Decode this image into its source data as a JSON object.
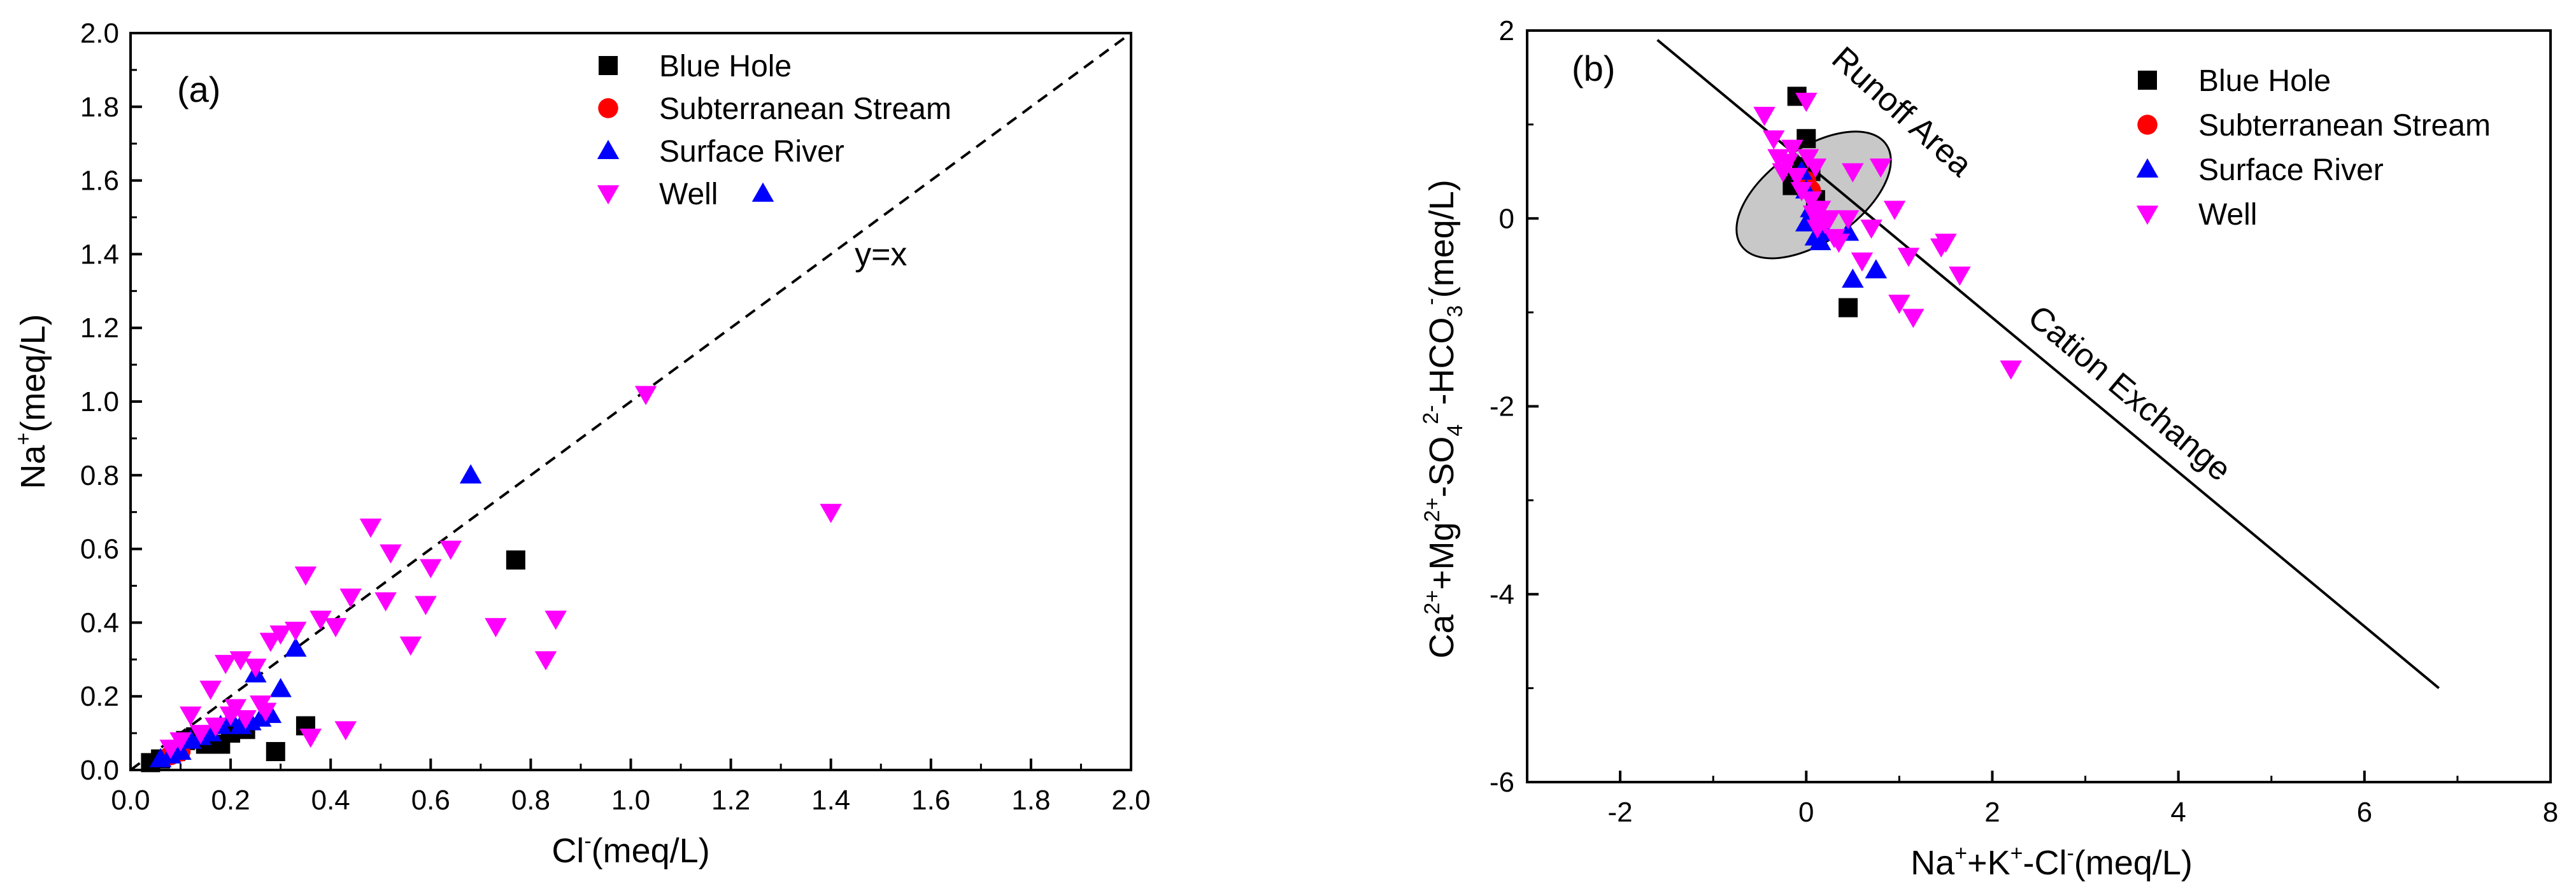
{
  "chart_data": [
    {
      "type": "scatter",
      "panel_label": "(a)",
      "xlabel": {
        "base": "Cl",
        "sup": "-",
        "unit": "(meq/L)"
      },
      "ylabel": {
        "base": "Na",
        "sup": "+",
        "unit": "(meq/L)"
      },
      "xlim": [
        0,
        2.0
      ],
      "ylim": [
        0,
        2.0
      ],
      "xticks": [
        0.0,
        0.2,
        0.4,
        0.6,
        0.8,
        1.0,
        1.2,
        1.4,
        1.6,
        1.8,
        2.0
      ],
      "yticks": [
        0.0,
        0.2,
        0.4,
        0.6,
        0.8,
        1.0,
        1.2,
        1.4,
        1.6,
        1.8,
        2.0
      ],
      "xtick_labels": [
        "0.0",
        "0.2",
        "0.4",
        "0.6",
        "0.8",
        "1.0",
        "1.2",
        "1.4",
        "1.6",
        "1.8",
        "2.0"
      ],
      "ytick_labels": [
        "0.0",
        "0.2",
        "0.4",
        "0.6",
        "0.8",
        "1.0",
        "1.2",
        "1.4",
        "1.6",
        "1.8",
        "2.0"
      ],
      "reference_line": {
        "label": "y=x",
        "points": [
          [
            0,
            0
          ],
          [
            2,
            2
          ]
        ],
        "style": "dashed"
      },
      "legend_position": "top-center",
      "series": [
        {
          "name": "Blue Hole",
          "marker": "square",
          "color": "#000000",
          "points": [
            [
              0.04,
              0.02
            ],
            [
              0.06,
              0.03
            ],
            [
              0.09,
              0.05
            ],
            [
              0.11,
              0.08
            ],
            [
              0.13,
              0.09
            ],
            [
              0.15,
              0.07
            ],
            [
              0.18,
              0.07
            ],
            [
              0.2,
              0.1
            ],
            [
              0.23,
              0.11
            ],
            [
              0.29,
              0.05
            ],
            [
              0.35,
              0.12
            ],
            [
              0.77,
              0.57
            ]
          ]
        },
        {
          "name": "Subterranean Stream",
          "marker": "circle",
          "color": "#ff0000",
          "points": [
            [
              0.08,
              0.04
            ],
            [
              0.1,
              0.05
            ]
          ]
        },
        {
          "name": "Surface River",
          "marker": "triangle-up",
          "color": "#0000ff",
          "points": [
            [
              0.06,
              0.03
            ],
            [
              0.08,
              0.04
            ],
            [
              0.1,
              0.05
            ],
            [
              0.12,
              0.08
            ],
            [
              0.14,
              0.09
            ],
            [
              0.16,
              0.1
            ],
            [
              0.18,
              0.12
            ],
            [
              0.2,
              0.14
            ],
            [
              0.22,
              0.12
            ],
            [
              0.24,
              0.13
            ],
            [
              0.25,
              0.26
            ],
            [
              0.26,
              0.14
            ],
            [
              0.28,
              0.15
            ],
            [
              0.3,
              0.22
            ],
            [
              0.33,
              0.33
            ],
            [
              0.68,
              0.8
            ]
          ]
        },
        {
          "name": "Well",
          "marker": "triangle-down",
          "color": "#ff00ff",
          "points": [
            [
              0.08,
              0.06
            ],
            [
              0.1,
              0.08
            ],
            [
              0.12,
              0.15
            ],
            [
              0.14,
              0.1
            ],
            [
              0.16,
              0.22
            ],
            [
              0.17,
              0.12
            ],
            [
              0.19,
              0.29
            ],
            [
              0.2,
              0.15
            ],
            [
              0.21,
              0.17
            ],
            [
              0.22,
              0.3
            ],
            [
              0.23,
              0.14
            ],
            [
              0.25,
              0.28
            ],
            [
              0.26,
              0.18
            ],
            [
              0.27,
              0.16
            ],
            [
              0.28,
              0.35
            ],
            [
              0.3,
              0.37
            ],
            [
              0.33,
              0.38
            ],
            [
              0.35,
              0.53
            ],
            [
              0.36,
              0.09
            ],
            [
              0.38,
              0.41
            ],
            [
              0.41,
              0.39
            ],
            [
              0.43,
              0.11
            ],
            [
              0.44,
              0.47
            ],
            [
              0.48,
              0.66
            ],
            [
              0.51,
              0.46
            ],
            [
              0.52,
              0.59
            ],
            [
              0.56,
              0.34
            ],
            [
              0.59,
              0.45
            ],
            [
              0.6,
              0.55
            ],
            [
              0.64,
              0.6
            ],
            [
              0.73,
              0.39
            ],
            [
              0.83,
              0.3
            ],
            [
              0.85,
              0.41
            ],
            [
              1.03,
              1.02
            ],
            [
              1.4,
              0.7
            ]
          ]
        }
      ]
    },
    {
      "type": "scatter",
      "panel_label": "(b)",
      "xlabel": {
        "text": "Na+ + K+ − Cl− (meq/L)"
      },
      "ylabel": {
        "text": "Ca2+ + Mg2+ − SO42− − HCO3− (meq/L)"
      },
      "xlim": [
        -3,
        8
      ],
      "ylim": [
        -6,
        2
      ],
      "xticks": [
        -2,
        0,
        2,
        4,
        6,
        8
      ],
      "yticks": [
        -6,
        -4,
        -2,
        0,
        2
      ],
      "xtick_labels": [
        "-2",
        "0",
        "2",
        "4",
        "6",
        "8"
      ],
      "ytick_labels": [
        "-6",
        "-4",
        "-2",
        "0",
        "2"
      ],
      "reference_line": {
        "label": "Cation Exchange",
        "points": [
          [
            -1.6,
            1.9
          ],
          [
            6.8,
            -5.0
          ]
        ],
        "style": "solid"
      },
      "region": {
        "label": "Runoff Area",
        "shape": "ellipse",
        "center": [
          0.08,
          0.25
        ],
        "semi_axes": [
          0.95,
          0.5
        ],
        "angle_deg": -35,
        "fill": "#c8c8c8"
      },
      "legend_position": "top-right",
      "series": [
        {
          "name": "Blue Hole",
          "marker": "square",
          "color": "#000000",
          "points": [
            [
              -0.1,
              1.3
            ],
            [
              0.0,
              0.85
            ],
            [
              -0.05,
              0.55
            ],
            [
              0.05,
              0.5
            ],
            [
              -0.1,
              0.4
            ],
            [
              -0.15,
              0.35
            ],
            [
              0.1,
              0.2
            ],
            [
              0.45,
              -0.95
            ]
          ]
        },
        {
          "name": "Subterranean Stream",
          "marker": "circle",
          "color": "#ff0000",
          "points": [
            [
              0.0,
              0.4
            ],
            [
              0.05,
              0.3
            ]
          ]
        },
        {
          "name": "Surface River",
          "marker": "triangle-up",
          "color": "#0000ff",
          "points": [
            [
              -0.05,
              0.5
            ],
            [
              0.0,
              0.3
            ],
            [
              0.05,
              0.1
            ],
            [
              0.0,
              -0.05
            ],
            [
              0.1,
              -0.2
            ],
            [
              0.15,
              -0.25
            ],
            [
              0.2,
              -0.15
            ],
            [
              0.45,
              -0.15
            ],
            [
              0.5,
              -0.65
            ],
            [
              0.75,
              -0.55
            ]
          ]
        },
        {
          "name": "Well",
          "marker": "triangle-down",
          "color": "#ff00ff",
          "points": [
            [
              -0.45,
              1.1
            ],
            [
              -0.35,
              0.85
            ],
            [
              -0.3,
              0.65
            ],
            [
              -0.25,
              0.5
            ],
            [
              -0.2,
              0.6
            ],
            [
              -0.15,
              0.75
            ],
            [
              -0.1,
              0.45
            ],
            [
              -0.05,
              0.3
            ],
            [
              0.0,
              1.25
            ],
            [
              0.02,
              0.65
            ],
            [
              0.05,
              0.2
            ],
            [
              0.08,
              0.05
            ],
            [
              0.1,
              0.55
            ],
            [
              0.12,
              -0.1
            ],
            [
              0.15,
              0.1
            ],
            [
              0.2,
              -0.05
            ],
            [
              0.25,
              0.0
            ],
            [
              0.3,
              -0.2
            ],
            [
              0.35,
              -0.25
            ],
            [
              0.45,
              0.0
            ],
            [
              0.5,
              0.5
            ],
            [
              0.6,
              -0.45
            ],
            [
              0.7,
              -0.1
            ],
            [
              0.8,
              0.55
            ],
            [
              0.95,
              0.1
            ],
            [
              1.0,
              -0.9
            ],
            [
              1.1,
              -0.4
            ],
            [
              1.15,
              -1.05
            ],
            [
              1.45,
              -0.3
            ],
            [
              1.5,
              -0.25
            ],
            [
              1.65,
              -0.6
            ],
            [
              2.2,
              -1.6
            ]
          ]
        }
      ]
    }
  ]
}
